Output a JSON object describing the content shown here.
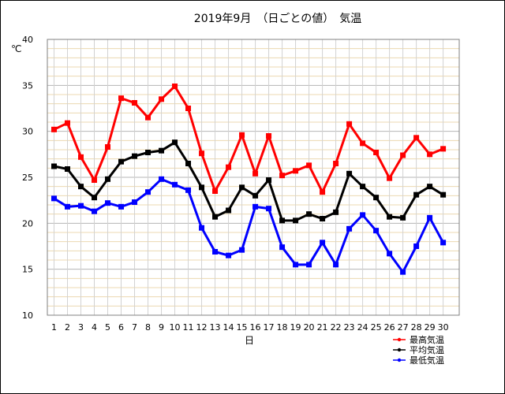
{
  "chart_data": {
    "type": "line",
    "title": "2019年9月　（日ごとの値）　気温",
    "ylabel": "℃",
    "xlabel": "日",
    "ylim": [
      10,
      40
    ],
    "yticks": [
      10,
      15,
      20,
      25,
      30,
      35,
      40
    ],
    "grid": true,
    "legend_position": "bottom-right",
    "x": [
      1,
      2,
      3,
      4,
      5,
      6,
      7,
      8,
      9,
      10,
      11,
      12,
      13,
      14,
      15,
      16,
      17,
      18,
      19,
      20,
      21,
      22,
      23,
      24,
      25,
      26,
      27,
      28,
      29,
      30
    ],
    "series": [
      {
        "name": "最高気温",
        "color": "#ff0000",
        "values": [
          30.2,
          30.9,
          27.2,
          24.7,
          28.3,
          33.6,
          33.1,
          31.5,
          33.5,
          34.9,
          32.5,
          27.6,
          23.5,
          26.1,
          29.6,
          25.4,
          29.5,
          25.2,
          25.7,
          26.3,
          23.4,
          26.5,
          30.8,
          28.7,
          27.7,
          24.9,
          27.4,
          29.3,
          27.5,
          28.1
        ]
      },
      {
        "name": "平均気温",
        "color": "#000000",
        "values": [
          26.2,
          25.9,
          24.0,
          22.8,
          24.8,
          26.7,
          27.3,
          27.7,
          27.9,
          28.8,
          26.5,
          23.9,
          20.7,
          21.4,
          23.9,
          23.0,
          24.7,
          20.3,
          20.3,
          21.0,
          20.5,
          21.2,
          25.4,
          24.0,
          22.8,
          20.7,
          20.6,
          23.1,
          24.0,
          23.1
        ]
      },
      {
        "name": "最低気温",
        "color": "#0000ff",
        "values": [
          22.7,
          21.8,
          21.9,
          21.3,
          22.2,
          21.8,
          22.3,
          23.4,
          24.8,
          24.2,
          23.6,
          19.5,
          16.9,
          16.5,
          17.1,
          21.8,
          21.6,
          17.4,
          15.5,
          15.5,
          17.9,
          15.5,
          19.4,
          20.9,
          19.2,
          16.7,
          14.7,
          17.5,
          20.6,
          17.9
        ]
      }
    ]
  }
}
